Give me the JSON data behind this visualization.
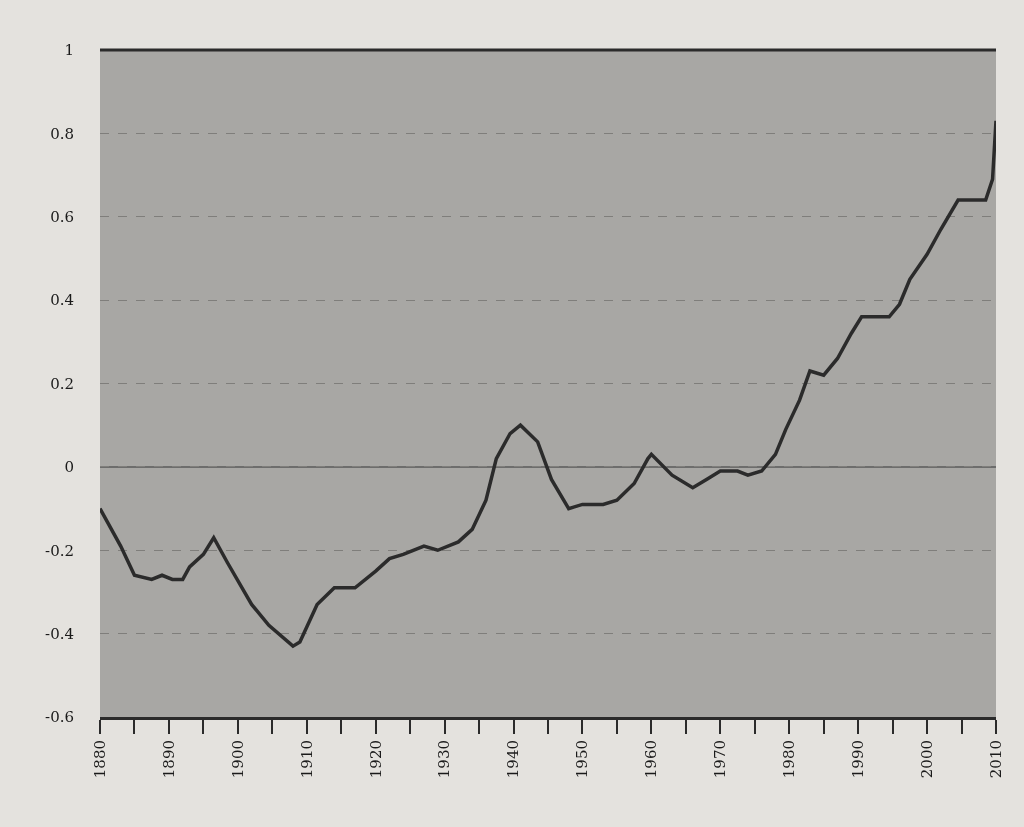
{
  "chart_data": {
    "type": "line",
    "x": [
      1880,
      1883,
      1885,
      1887.5,
      1889,
      1890.5,
      1892,
      1893,
      1895,
      1896.5,
      1898.5,
      1902,
      1904.5,
      1908,
      1909,
      1911.5,
      1914,
      1917,
      1920,
      1922,
      1924,
      1927,
      1929,
      1932,
      1934,
      1936,
      1937.5,
      1939.5,
      1941,
      1943.5,
      1945.5,
      1948,
      1950,
      1953,
      1955,
      1957.5,
      1959.5,
      1960,
      1963,
      1966,
      1968,
      1970,
      1972.5,
      1974,
      1976,
      1978,
      1979.5,
      1981.5,
      1983,
      1985,
      1987,
      1989,
      1990.5,
      1992.5,
      1994.5,
      1996,
      1997.5,
      2000,
      2002,
      2004.5,
      2007,
      2008.5,
      2009.5,
      2010
    ],
    "series": [
      {
        "color": "#2b2b2b",
        "values": [
          -0.1,
          -0.19,
          -0.26,
          -0.27,
          -0.26,
          -0.27,
          -0.27,
          -0.24,
          -0.21,
          -0.17,
          -0.23,
          -0.33,
          -0.38,
          -0.43,
          -0.42,
          -0.33,
          -0.29,
          -0.29,
          -0.25,
          -0.22,
          -0.21,
          -0.19,
          -0.2,
          -0.18,
          -0.15,
          -0.08,
          0.02,
          0.08,
          0.1,
          0.06,
          -0.03,
          -0.1,
          -0.09,
          -0.09,
          -0.08,
          -0.04,
          0.02,
          0.03,
          -0.02,
          -0.05,
          -0.03,
          -0.01,
          -0.01,
          -0.02,
          -0.01,
          0.03,
          0.09,
          0.16,
          0.23,
          0.22,
          0.26,
          0.32,
          0.36,
          0.36,
          0.36,
          0.39,
          0.45,
          0.51,
          0.57,
          0.64,
          0.64,
          0.64,
          0.69,
          0.83
        ]
      }
    ],
    "xlim": [
      1880,
      2010
    ],
    "xticks": [
      1880,
      {
        "value": 1885,
        "label": null
      },
      1890,
      {
        "value": 1895,
        "label": null
      },
      1900,
      {
        "value": 1905,
        "label": null
      },
      1910,
      {
        "value": 1915,
        "label": null
      },
      1920,
      {
        "value": 1925,
        "label": null
      },
      1930,
      {
        "value": 1935,
        "label": null
      },
      1940,
      {
        "value": 1945,
        "label": null
      },
      1950,
      {
        "value": 1955,
        "label": null
      },
      1960,
      {
        "value": 1965,
        "label": null
      },
      1970,
      {
        "value": 1975,
        "label": null
      },
      1980,
      {
        "value": 1985,
        "label": null
      },
      1990,
      {
        "value": 1995,
        "label": null
      },
      2000,
      {
        "value": 2005,
        "label": null
      },
      2010
    ],
    "ylim": [
      -0.6,
      1
    ],
    "yticks": [
      -0.6,
      -0.4,
      -0.2,
      0,
      0.2,
      0.4,
      0.6,
      0.8,
      1
    ],
    "grid": "y",
    "ref_lines": [
      {
        "axis": "y",
        "value": 0,
        "color": "#5a5a5a",
        "line_style": "solid"
      }
    ],
    "marker": "none",
    "line_style": "solid"
  }
}
